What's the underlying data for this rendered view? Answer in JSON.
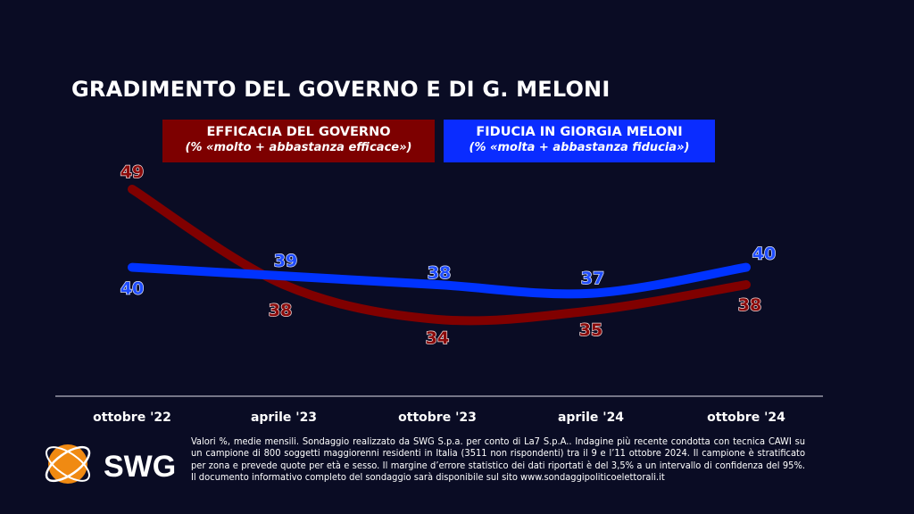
{
  "title": "GRADIMENTO DEL GOVERNO E DI G. MELONI",
  "colors": {
    "background": "#0a0c24",
    "red": "#800000",
    "blue": "#0033ff"
  },
  "chart_data": {
    "type": "line",
    "title": "GRADIMENTO DEL GOVERNO E DI G. MELONI",
    "categories": [
      "ottobre '22",
      "aprile '23",
      "ottobre '23",
      "aprile '24",
      "ottobre '24"
    ],
    "grid": false,
    "legend": "top",
    "series": [
      {
        "name": "EFFICACIA DEL GOVERNO",
        "subtitle": "(% «molto + abbastanza efficace»)",
        "color": "#800000",
        "values": [
          49,
          38,
          34,
          35,
          38
        ]
      },
      {
        "name": "FIDUCIA IN GIORGIA MELONI",
        "subtitle": "(% «molta + abbastanza fiducia»)",
        "color": "#0033ff",
        "values": [
          40,
          39,
          38,
          37,
          40
        ]
      }
    ]
  },
  "footnote": "Valori %, medie mensili. Sondaggio realizzato da SWG S.p.a. per conto di La7 S.p.A.. Indagine più recente condotta con tecnica CAWI su un campione di 800 soggetti maggiorenni residenti in Italia (3511 non rispondenti) tra il 9 e l’11 ottobre 2024. Il campione è stratificato per zona e prevede quote per età e sesso. Il margine d’errore statistico dei dati riportati è del 3,5% a un intervallo di confidenza del 95%. Il documento informativo completo del sondaggio sarà disponibile sul sito www.sondaggipoliticoelettorali.it",
  "logo": {
    "text": "SWG"
  }
}
